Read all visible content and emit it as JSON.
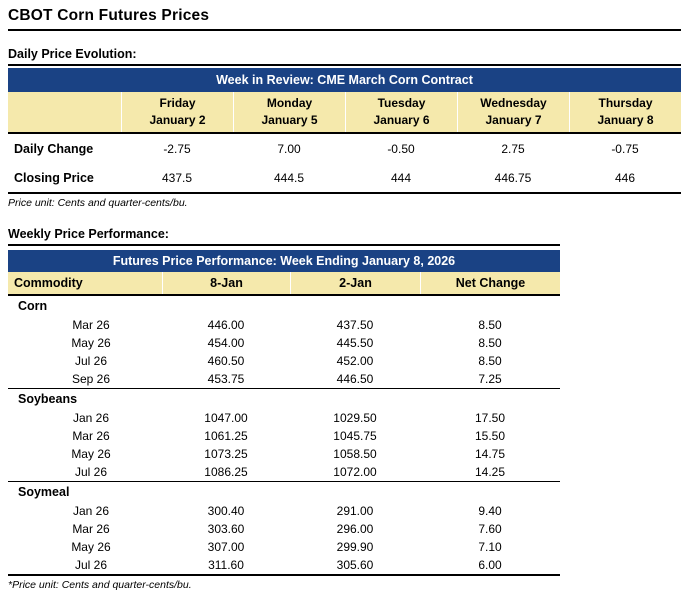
{
  "page": {
    "title": "CBOT Corn Futures Prices",
    "section1_heading": "Daily Price Evolution:",
    "section2_heading": "Weekly Price Performance:"
  },
  "colors": {
    "header_navy": "#1A4284",
    "header_tan": "#F5E9AC",
    "border_black": "#000000"
  },
  "daily_table": {
    "title": "Week in Review: CME March Corn Contract",
    "columns": [
      {
        "day": "Friday",
        "date": "January 2"
      },
      {
        "day": "Monday",
        "date": "January 5"
      },
      {
        "day": "Tuesday",
        "date": "January 6"
      },
      {
        "day": "Wednesday",
        "date": "January 7"
      },
      {
        "day": "Thursday",
        "date": "January 8"
      }
    ],
    "rows": [
      {
        "label": "Daily Change",
        "values": [
          "-2.75",
          "7.00",
          "-0.50",
          "2.75",
          "-0.75"
        ]
      },
      {
        "label": "Closing Price",
        "values": [
          "437.5",
          "444.5",
          "444",
          "446.75",
          "446"
        ]
      }
    ],
    "footnote": "Price unit: Cents and quarter-cents/bu."
  },
  "weekly_table": {
    "title": "Futures Price Performance: Week Ending January 8, 2026",
    "columns": [
      "Commodity",
      "8-Jan",
      "2-Jan",
      "Net Change"
    ],
    "groups": [
      {
        "name": "Corn",
        "rows": [
          {
            "month": "Mar 26",
            "jan8": "446.00",
            "jan2": "437.50",
            "net": "8.50"
          },
          {
            "month": "May 26",
            "jan8": "454.00",
            "jan2": "445.50",
            "net": "8.50"
          },
          {
            "month": "Jul 26",
            "jan8": "460.50",
            "jan2": "452.00",
            "net": "8.50"
          },
          {
            "month": "Sep 26",
            "jan8": "453.75",
            "jan2": "446.50",
            "net": "7.25"
          }
        ]
      },
      {
        "name": "Soybeans",
        "rows": [
          {
            "month": "Jan 26",
            "jan8": "1047.00",
            "jan2": "1029.50",
            "net": "17.50"
          },
          {
            "month": "Mar 26",
            "jan8": "1061.25",
            "jan2": "1045.75",
            "net": "15.50"
          },
          {
            "month": "May 26",
            "jan8": "1073.25",
            "jan2": "1058.50",
            "net": "14.75"
          },
          {
            "month": "Jul 26",
            "jan8": "1086.25",
            "jan2": "1072.00",
            "net": "14.25"
          }
        ]
      },
      {
        "name": "Soymeal",
        "rows": [
          {
            "month": "Jan 26",
            "jan8": "300.40",
            "jan2": "291.00",
            "net": "9.40"
          },
          {
            "month": "Mar 26",
            "jan8": "303.60",
            "jan2": "296.00",
            "net": "7.60"
          },
          {
            "month": "May 26",
            "jan8": "307.00",
            "jan2": "299.90",
            "net": "7.10"
          },
          {
            "month": "Jul 26",
            "jan8": "311.60",
            "jan2": "305.60",
            "net": "6.00"
          }
        ]
      }
    ],
    "footnote": "*Price unit: Cents and quarter-cents/bu."
  }
}
